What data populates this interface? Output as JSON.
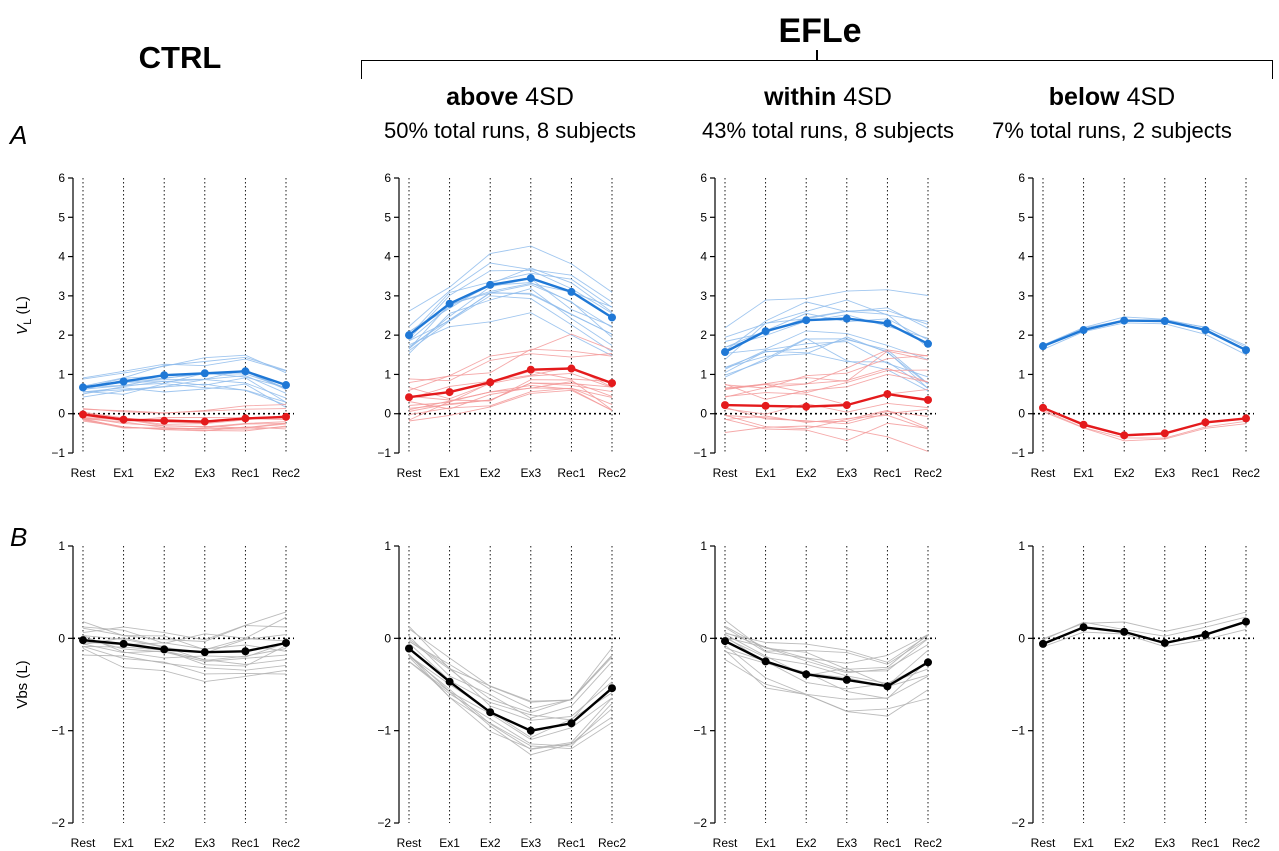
{
  "header": {
    "group_title": "EFLe",
    "ctrl_title": "CTRL",
    "panel_a_letter": "A",
    "panel_b_letter": "B"
  },
  "subgroups": [
    {
      "bold": "above",
      "rest": "4SD",
      "desc": "50% total runs, 8 subjects"
    },
    {
      "bold": "within",
      "rest": "4SD",
      "desc": "43% total runs, 8 subjects"
    },
    {
      "bold": "below",
      "rest": "4SD",
      "desc": "7% total runs, 2 subjects"
    }
  ],
  "colors": {
    "blue": "#1f78d6",
    "blue_light": "#8fbcec",
    "red": "#e41a1c",
    "red_light": "#f39a9a",
    "black": "#000000",
    "grey_light": "#b0b0b0"
  },
  "chart_data": [
    {
      "type": "line",
      "panel": "A",
      "group": "CTRL",
      "categories": [
        "Rest",
        "Ex1",
        "Ex2",
        "Ex3",
        "Rec1",
        "Rec2"
      ],
      "ylabel_main": "V",
      "ylabel_sub": "L",
      "ylabel_unit": "(L)",
      "ylim": [
        -1,
        6
      ],
      "yticks": [
        -1,
        0,
        1,
        2,
        3,
        4,
        5,
        6
      ],
      "series": [
        {
          "color": "blue",
          "values": [
            0.67,
            0.82,
            0.98,
            1.03,
            1.08,
            0.73
          ]
        },
        {
          "color": "red",
          "values": [
            -0.02,
            -0.15,
            -0.18,
            -0.2,
            -0.12,
            -0.08
          ]
        }
      ]
    },
    {
      "type": "line",
      "panel": "A",
      "group": "above 4SD",
      "categories": [
        "Rest",
        "Ex1",
        "Ex2",
        "Ex3",
        "Rec1",
        "Rec2"
      ],
      "ylim": [
        -1,
        6
      ],
      "yticks": [
        -1,
        0,
        1,
        2,
        3,
        4,
        5,
        6
      ],
      "series": [
        {
          "color": "blue",
          "values": [
            2.0,
            2.8,
            3.28,
            3.45,
            3.1,
            2.45
          ]
        },
        {
          "color": "red",
          "values": [
            0.42,
            0.55,
            0.8,
            1.12,
            1.15,
            0.78
          ]
        }
      ]
    },
    {
      "type": "line",
      "panel": "A",
      "group": "within 4SD",
      "categories": [
        "Rest",
        "Ex1",
        "Ex2",
        "Ex3",
        "Rec1",
        "Rec2"
      ],
      "ylim": [
        -1,
        6
      ],
      "yticks": [
        -1,
        0,
        1,
        2,
        3,
        4,
        5,
        6
      ],
      "series": [
        {
          "color": "blue",
          "values": [
            1.57,
            2.1,
            2.38,
            2.42,
            2.3,
            1.78
          ]
        },
        {
          "color": "red",
          "values": [
            0.22,
            0.2,
            0.18,
            0.22,
            0.5,
            0.35
          ]
        }
      ]
    },
    {
      "type": "line",
      "panel": "A",
      "group": "below 4SD",
      "categories": [
        "Rest",
        "Ex1",
        "Ex2",
        "Ex3",
        "Rec1",
        "Rec2"
      ],
      "ylim": [
        -1,
        6
      ],
      "yticks": [
        -1,
        0,
        1,
        2,
        3,
        4,
        5,
        6
      ],
      "series": [
        {
          "color": "blue",
          "values": [
            1.72,
            2.13,
            2.37,
            2.36,
            2.13,
            1.62
          ]
        },
        {
          "color": "red",
          "values": [
            0.15,
            -0.28,
            -0.55,
            -0.5,
            -0.22,
            -0.12
          ]
        }
      ]
    },
    {
      "type": "line",
      "panel": "B",
      "group": "CTRL",
      "categories": [
        "Rest",
        "Ex1",
        "Ex2",
        "Ex3",
        "Rec1",
        "Rec2"
      ],
      "ylabel": "Vbs (L)",
      "ylim": [
        -2,
        1
      ],
      "yticks": [
        -2,
        -1,
        0,
        1
      ],
      "series": [
        {
          "color": "black",
          "values": [
            -0.02,
            -0.06,
            -0.12,
            -0.15,
            -0.14,
            -0.05
          ]
        }
      ]
    },
    {
      "type": "line",
      "panel": "B",
      "group": "above 4SD",
      "categories": [
        "Rest",
        "Ex1",
        "Ex2",
        "Ex3",
        "Rec1",
        "Rec2"
      ],
      "ylim": [
        -2,
        1
      ],
      "yticks": [
        -2,
        -1,
        0,
        1
      ],
      "series": [
        {
          "color": "black",
          "values": [
            -0.11,
            -0.47,
            -0.8,
            -1.0,
            -0.92,
            -0.54
          ]
        }
      ]
    },
    {
      "type": "line",
      "panel": "B",
      "group": "within 4SD",
      "categories": [
        "Rest",
        "Ex1",
        "Ex2",
        "Ex3",
        "Rec1",
        "Rec2"
      ],
      "ylim": [
        -2,
        1
      ],
      "yticks": [
        -2,
        -1,
        0,
        1
      ],
      "series": [
        {
          "color": "black",
          "values": [
            -0.03,
            -0.25,
            -0.39,
            -0.45,
            -0.52,
            -0.26
          ]
        }
      ]
    },
    {
      "type": "line",
      "panel": "B",
      "group": "below 4SD",
      "categories": [
        "Rest",
        "Ex1",
        "Ex2",
        "Ex3",
        "Rec1",
        "Rec2"
      ],
      "ylim": [
        -2,
        1
      ],
      "yticks": [
        -2,
        -1,
        0,
        1
      ],
      "series": [
        {
          "color": "black",
          "values": [
            -0.06,
            0.12,
            0.07,
            -0.05,
            0.04,
            0.18
          ]
        }
      ]
    }
  ]
}
